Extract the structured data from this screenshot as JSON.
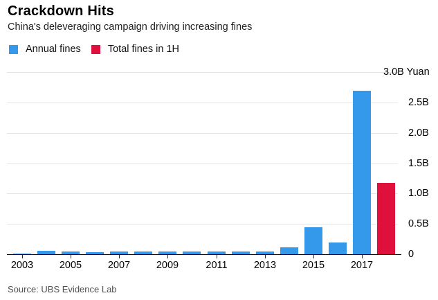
{
  "header": {
    "title": "Crackdown Hits",
    "subtitle": "China's deleveraging campaign driving increasing fines"
  },
  "legend": {
    "items": [
      {
        "label": "Annual fines",
        "color": "#3498eb"
      },
      {
        "label": "Total fines in 1H",
        "color": "#e0103c"
      }
    ]
  },
  "footer": {
    "source": "Source: UBS Evidence Lab"
  },
  "colors": {
    "annual_fines": "#3498eb",
    "total_fines_1h": "#e0103c",
    "gridline": "#e4e4e4",
    "axis": "#000000"
  },
  "chart_data": {
    "type": "bar",
    "title": "Crackdown Hits",
    "subtitle": "China's deleveraging campaign driving increasing fines",
    "unit": "Yuan",
    "ylim": [
      0,
      3.0
    ],
    "grid": "horizontal",
    "legend_position": "top-left",
    "y_ticks": [
      {
        "value": 3.0,
        "label": "3.0B Yuan"
      },
      {
        "value": 2.5,
        "label": "2.5B"
      },
      {
        "value": 2.0,
        "label": "2.0B"
      },
      {
        "value": 1.5,
        "label": "1.5B"
      },
      {
        "value": 1.0,
        "label": "1.0B"
      },
      {
        "value": 0.5,
        "label": "0.5B"
      },
      {
        "value": 0,
        "label": "0"
      }
    ],
    "x_tick_labels": [
      "2003",
      "2005",
      "2007",
      "2009",
      "2011",
      "2013",
      "2015",
      "2017"
    ],
    "series": [
      {
        "name": "Annual fines",
        "color": "#3498eb",
        "x": [
          2003,
          2004,
          2005,
          2006,
          2007,
          2008,
          2009,
          2010,
          2011,
          2012,
          2013,
          2014,
          2015,
          2016,
          2017
        ],
        "values": [
          0.01,
          0.06,
          0.05,
          0.03,
          0.05,
          0.04,
          0.05,
          0.05,
          0.05,
          0.05,
          0.04,
          0.11,
          0.44,
          0.19,
          2.69
        ]
      },
      {
        "name": "Total fines in 1H",
        "color": "#e0103c",
        "x": [
          2018
        ],
        "values": [
          1.17
        ]
      }
    ]
  }
}
